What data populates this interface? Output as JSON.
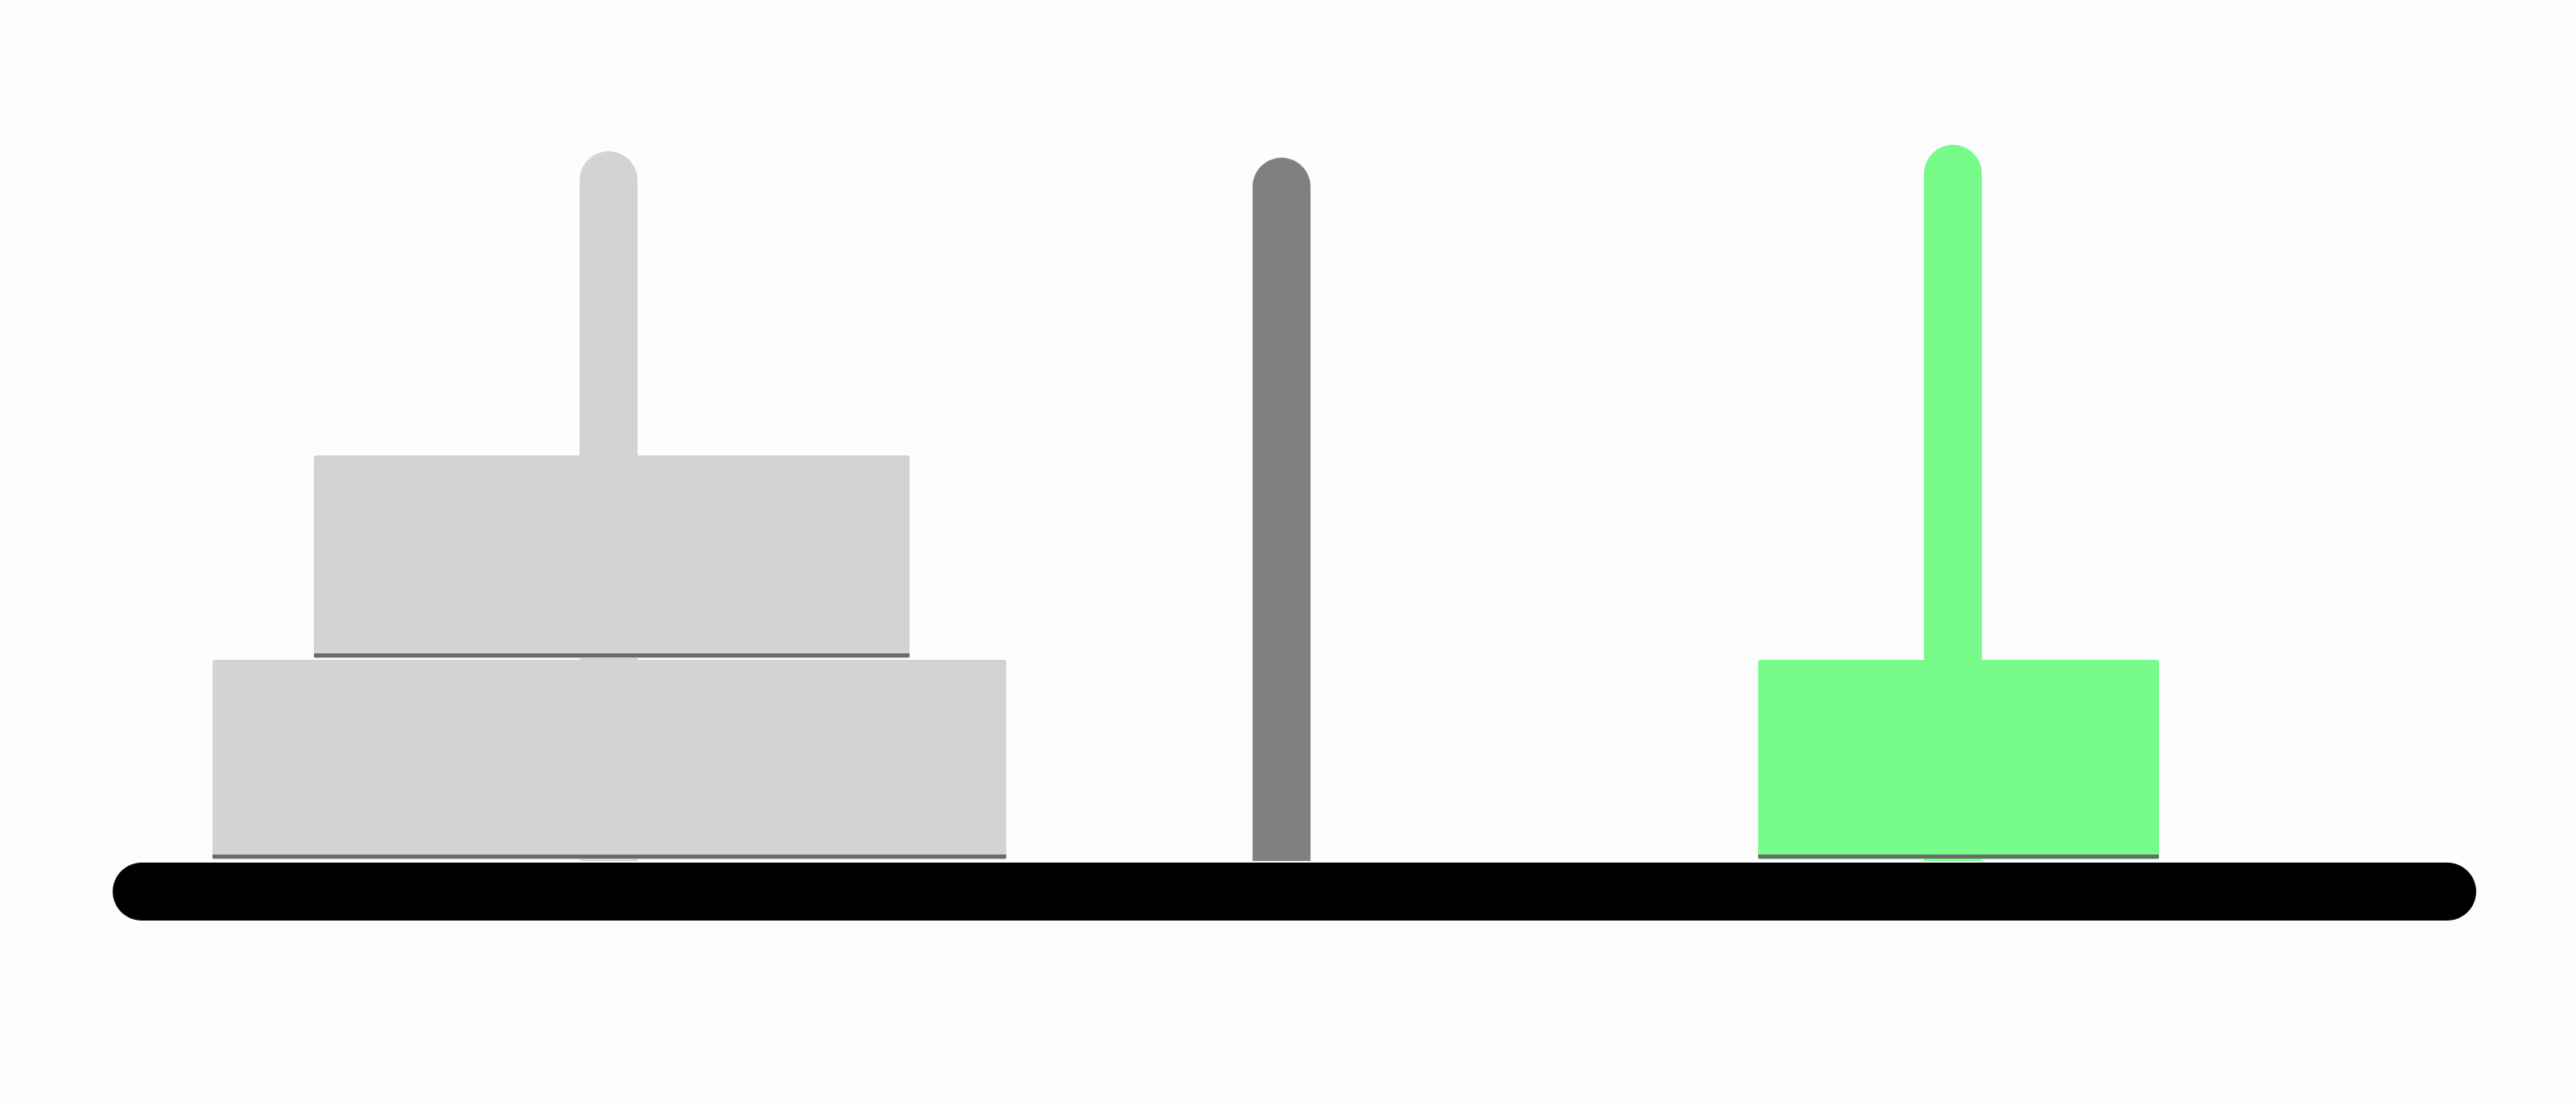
{
  "game": {
    "name": "tower-of-hanoi",
    "total_disks": 3,
    "colors": {
      "background": "#fdfdfd",
      "base": "#000000",
      "peg_inactive": "#d3d3d3",
      "peg_active": "#808080",
      "peg_target": "#77fc8c",
      "disk_inactive": "#d3d3d3",
      "disk_target": "#77fc8c",
      "disk_edge": "#6a6a6a"
    },
    "pegs": [
      {
        "id": "peg-left",
        "state": "inactive",
        "disks_bottom_to_top": [
          3,
          2
        ]
      },
      {
        "id": "peg-middle",
        "state": "active",
        "disks_bottom_to_top": []
      },
      {
        "id": "peg-right",
        "state": "target",
        "disks_bottom_to_top": [
          1
        ]
      }
    ]
  }
}
